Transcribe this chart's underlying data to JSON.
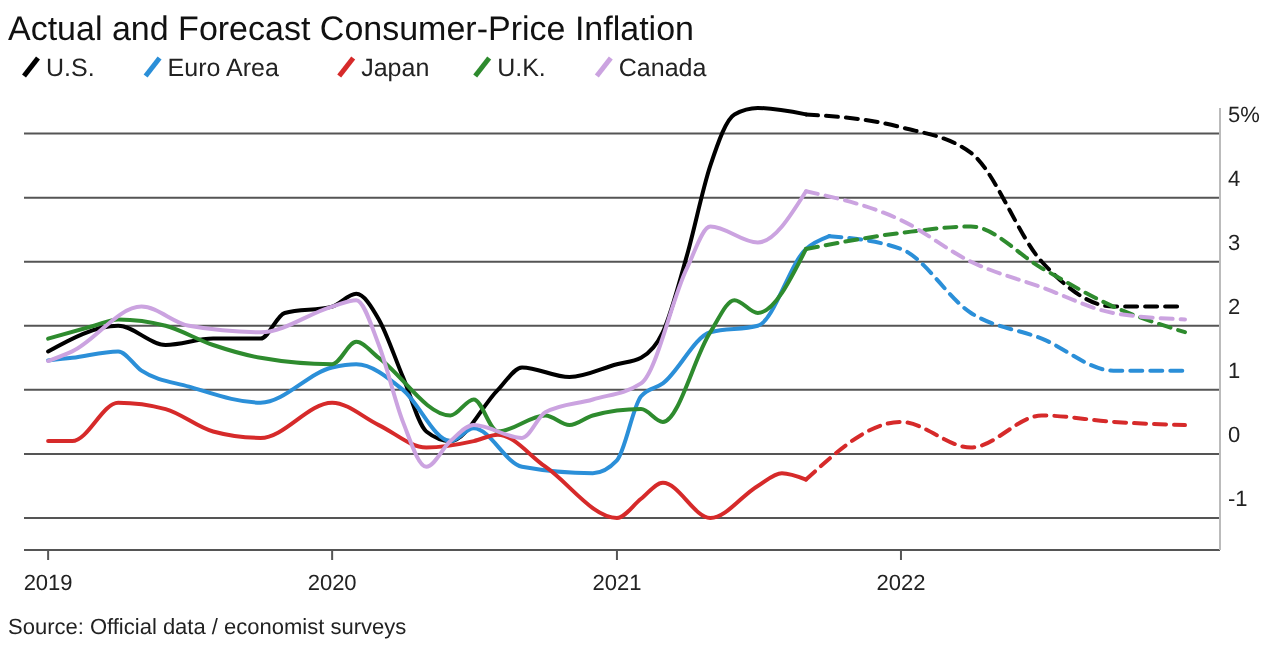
{
  "chart_data": {
    "type": "line",
    "title": "Actual and Forecast Consumer-Price Inflation",
    "annotations": [
      "Source: Official data / economist surveys"
    ],
    "xlim": [
      "2018-12-01",
      "2023-02-15"
    ],
    "xticks": [
      {
        "value": "2019-01-01",
        "label": "2019"
      },
      {
        "value": "2020-01-01",
        "label": "2020"
      },
      {
        "value": "2021-01-01",
        "label": "2021"
      },
      {
        "value": "2022-01-01",
        "label": "2022"
      }
    ],
    "ylim": [
      -1.5,
      5.4
    ],
    "yticks": [
      -1,
      0,
      1,
      2,
      3,
      {
        "value": 4,
        "label": "4"
      },
      {
        "value": 5,
        "label": "5%"
      }
    ],
    "grid": "y",
    "legend": "top left",
    "line_style": "solid",
    "marker": "none",
    "series": [
      {
        "name": "U.S.",
        "color": "#000000",
        "x": [
          "2019-01",
          "2019-04",
          "2019-06",
          "2019-08",
          "2019-10",
          "2019-11",
          "2020-01",
          "2020-02",
          "2020-03",
          "2020-04",
          "2020-05",
          "2020-06",
          "2020-08",
          "2020-09",
          "2020-11",
          "2021-01",
          "2021-02",
          "2021-03",
          "2021-04",
          "2021-05",
          "2021-06",
          "2021-07",
          "2021-09"
        ],
        "values": [
          1.6,
          2.0,
          1.7,
          1.8,
          1.8,
          2.2,
          2.3,
          2.5,
          2.1,
          1.2,
          0.35,
          0.2,
          1.0,
          1.35,
          1.2,
          1.4,
          1.5,
          1.9,
          3.1,
          4.5,
          5.3,
          5.4,
          5.3
        ]
      },
      {
        "color": "#000000",
        "line_style": "dashed",
        "x": [
          "2021-09",
          "2022-01",
          "2022-04",
          "2022-07",
          "2022-10",
          "2023-01"
        ],
        "values": [
          5.3,
          5.1,
          4.7,
          3.0,
          2.3,
          2.3
        ]
      },
      {
        "name": "Euro Area",
        "color": "#2b8fd8",
        "x": [
          "2019-01",
          "2019-02",
          "2019-04",
          "2019-05",
          "2019-07",
          "2019-10",
          "2020-01",
          "2020-02",
          "2020-04",
          "2020-06",
          "2020-07",
          "2020-09",
          "2020-12",
          "2021-01",
          "2021-02",
          "2021-03",
          "2021-05",
          "2021-07",
          "2021-09",
          "2021-10"
        ],
        "values": [
          1.46,
          1.5,
          1.6,
          1.3,
          1.05,
          0.8,
          1.35,
          1.4,
          1.0,
          0.2,
          0.4,
          -0.2,
          -0.3,
          -0.1,
          0.9,
          1.1,
          1.9,
          2.0,
          3.2,
          3.4
        ]
      },
      {
        "color": "#2b8fd8",
        "line_style": "dashed",
        "x": [
          "2021-10",
          "2022-01",
          "2022-04",
          "2022-07",
          "2022-10",
          "2023-01"
        ],
        "values": [
          3.4,
          3.2,
          2.2,
          1.8,
          1.3,
          1.3
        ]
      },
      {
        "name": "Japan",
        "color": "#d62a2a",
        "x": [
          "2019-01",
          "2019-02",
          "2019-04",
          "2019-06",
          "2019-08",
          "2019-10",
          "2020-01",
          "2020-03",
          "2020-05",
          "2020-07",
          "2020-08",
          "2020-10",
          "2021-01",
          "2021-02",
          "2021-03",
          "2021-05",
          "2021-07",
          "2021-08",
          "2021-09"
        ],
        "values": [
          0.2,
          0.2,
          0.8,
          0.7,
          0.35,
          0.25,
          0.8,
          0.45,
          0.1,
          0.2,
          0.3,
          -0.2,
          -1.0,
          -0.7,
          -0.45,
          -1.0,
          -0.5,
          -0.3,
          -0.4
        ]
      },
      {
        "color": "#d62a2a",
        "line_style": "dashed",
        "x": [
          "2021-09",
          "2022-01",
          "2022-04",
          "2022-07",
          "2022-10",
          "2023-01"
        ],
        "values": [
          -0.4,
          0.5,
          0.1,
          0.6,
          0.5,
          0.45
        ]
      },
      {
        "name": "U.K.",
        "color": "#2e8b2e",
        "x": [
          "2019-01",
          "2019-03",
          "2019-04",
          "2019-06",
          "2019-08",
          "2019-10",
          "2020-01",
          "2020-02",
          "2020-03",
          "2020-06",
          "2020-07",
          "2020-08",
          "2020-10",
          "2020-11",
          "2020-12",
          "2021-02",
          "2021-03",
          "2021-05",
          "2021-06",
          "2021-07",
          "2021-09"
        ],
        "values": [
          1.8,
          2.0,
          2.1,
          2.0,
          1.7,
          1.5,
          1.4,
          1.75,
          1.5,
          0.6,
          0.85,
          0.35,
          0.6,
          0.45,
          0.6,
          0.7,
          0.5,
          1.9,
          2.4,
          2.2,
          3.2
        ]
      },
      {
        "color": "#2e8b2e",
        "line_style": "dashed",
        "x": [
          "2021-09",
          "2022-01",
          "2022-04",
          "2022-07",
          "2022-10",
          "2023-01"
        ],
        "values": [
          3.2,
          3.45,
          3.55,
          2.9,
          2.3,
          1.9
        ]
      },
      {
        "name": "Canada",
        "color": "#cba3e0",
        "x": [
          "2019-01",
          "2019-02",
          "2019-05",
          "2019-07",
          "2019-10",
          "2020-01",
          "2020-02",
          "2020-03",
          "2020-04",
          "2020-05",
          "2020-06",
          "2020-07",
          "2020-09",
          "2020-10",
          "2020-12",
          "2021-02",
          "2021-04",
          "2021-05",
          "2021-07",
          "2021-09"
        ],
        "values": [
          1.45,
          1.6,
          2.3,
          2.0,
          1.9,
          2.3,
          2.4,
          1.7,
          0.5,
          -0.2,
          0.2,
          0.45,
          0.25,
          0.65,
          0.85,
          1.1,
          2.9,
          3.55,
          3.3,
          4.1
        ]
      },
      {
        "color": "#cba3e0",
        "line_style": "dashed",
        "x": [
          "2021-09",
          "2022-01",
          "2022-04",
          "2022-07",
          "2022-10",
          "2023-01"
        ],
        "values": [
          4.1,
          3.65,
          3.0,
          2.6,
          2.2,
          2.1
        ]
      }
    ]
  }
}
